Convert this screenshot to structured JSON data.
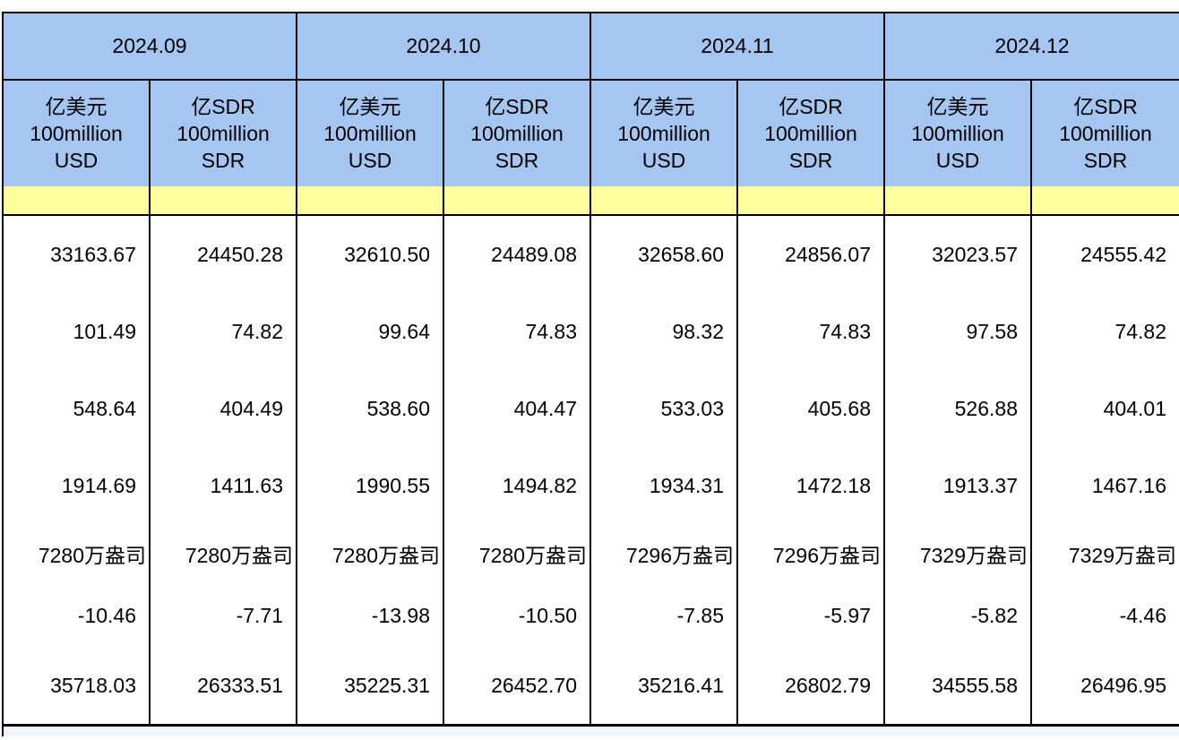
{
  "colors": {
    "header_blue": "#a4c6f0",
    "highlight_yellow": "#ffff9e",
    "grid_border": "#000000",
    "background": "#ffffff",
    "bottom_strip": "#f2f7fd"
  },
  "chart_data": {
    "type": "table",
    "title": "",
    "column_groups": [
      "2024.09",
      "2024.10",
      "2024.11",
      "2024.12"
    ],
    "units": [
      {
        "zh": "亿美元",
        "en1": "100million",
        "en2": "USD"
      },
      {
        "zh": "亿SDR",
        "en1": "100million",
        "en2": "SDR"
      },
      {
        "zh": "亿美元",
        "en1": "100million",
        "en2": "USD"
      },
      {
        "zh": "亿SDR",
        "en1": "100million",
        "en2": "SDR"
      },
      {
        "zh": "亿美元",
        "en1": "100million",
        "en2": "USD"
      },
      {
        "zh": "亿SDR",
        "en1": "100million",
        "en2": "SDR"
      },
      {
        "zh": "亿美元",
        "en1": "100million",
        "en2": "USD"
      },
      {
        "zh": "亿SDR",
        "en1": "100million",
        "en2": "SDR"
      }
    ],
    "rows": [
      [
        "33163.67",
        "24450.28",
        "32610.50",
        "24489.08",
        "32658.60",
        "24856.07",
        "32023.57",
        "24555.42"
      ],
      [
        "101.49",
        "74.82",
        "99.64",
        "74.83",
        "98.32",
        "74.83",
        "97.58",
        "74.82"
      ],
      [
        "548.64",
        "404.49",
        "538.60",
        "404.47",
        "533.03",
        "405.68",
        "526.88",
        "404.01"
      ],
      [
        "1914.69",
        "1411.63",
        "1990.55",
        "1494.82",
        "1934.31",
        "1472.18",
        "1913.37",
        "1467.16"
      ],
      [
        "7280万盎司",
        "7280万盎司",
        "7280万盎司",
        "7280万盎司",
        "7296万盎司",
        "7296万盎司",
        "7329万盎司",
        "7329万盎司"
      ],
      [
        "-10.46",
        "-7.71",
        "-13.98",
        "-10.50",
        "-7.85",
        "-5.97",
        "-5.82",
        "-4.46"
      ],
      [
        "35718.03",
        "26333.51",
        "35225.31",
        "26452.70",
        "35216.41",
        "26802.79",
        "34555.58",
        "26496.95"
      ]
    ]
  }
}
